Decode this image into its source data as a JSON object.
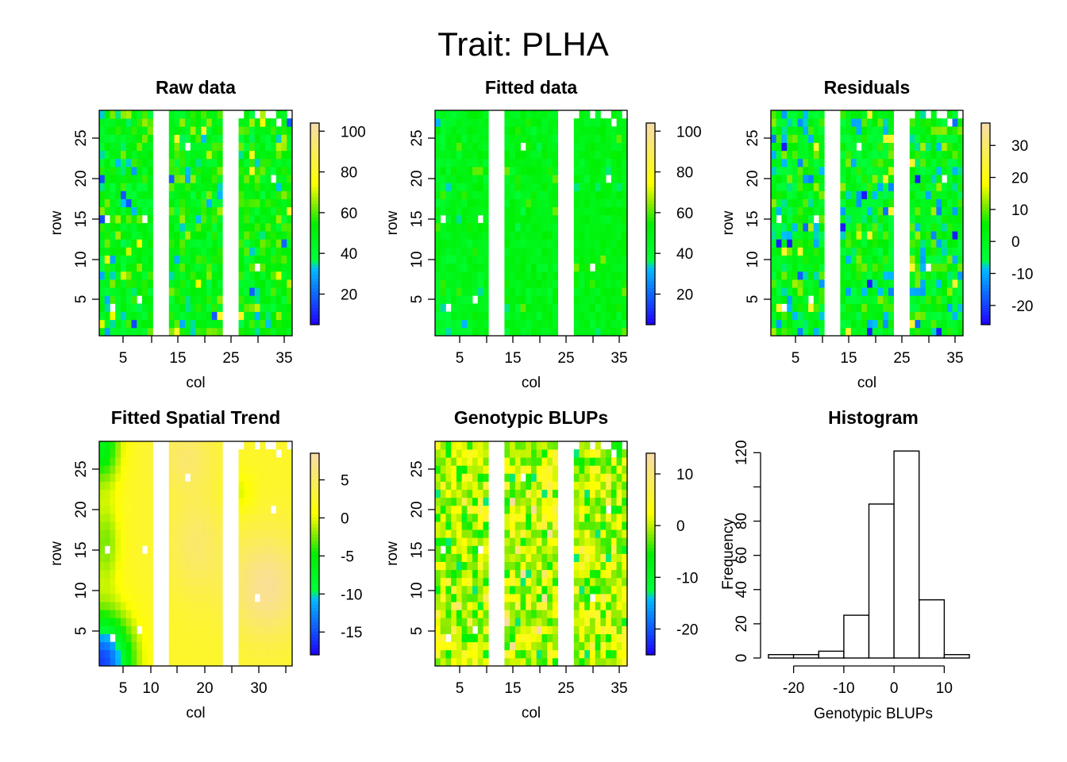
{
  "figure": {
    "title": "Trait: PLHA"
  },
  "chart_data": [
    {
      "id": "raw",
      "type": "heatmap",
      "title": "Raw data",
      "xlabel": "col",
      "ylabel": "row",
      "xlim": [
        0.5,
        36.5
      ],
      "ylim": [
        0.5,
        28.5
      ],
      "xticks": [
        "5",
        "15",
        "25",
        "35"
      ],
      "yticks": [
        "5",
        "10",
        "15",
        "20",
        "25"
      ],
      "colorbar": {
        "min": 5,
        "max": 104,
        "ticks": [
          "20",
          "40",
          "60",
          "80",
          "100"
        ]
      },
      "missing_columns": [
        11,
        12,
        13,
        24,
        25,
        26
      ],
      "value_mean": 48,
      "value_spread": 12
    },
    {
      "id": "fitted",
      "type": "heatmap",
      "title": "Fitted data",
      "xlabel": "col",
      "ylabel": "row",
      "xlim": [
        0.5,
        36.5
      ],
      "ylim": [
        0.5,
        28.5
      ],
      "xticks": [
        "5",
        "15",
        "25",
        "35"
      ],
      "yticks": [
        "5",
        "10",
        "15",
        "20",
        "25"
      ],
      "colorbar": {
        "min": 5,
        "max": 104,
        "ticks": [
          "20",
          "40",
          "60",
          "80",
          "100"
        ]
      },
      "missing_columns": [
        11,
        12,
        13,
        24,
        25,
        26
      ],
      "value_mean": 47,
      "value_spread": 5
    },
    {
      "id": "residuals",
      "type": "heatmap",
      "title": "Residuals",
      "xlabel": "col",
      "ylabel": "row",
      "xlim": [
        0.5,
        36.5
      ],
      "ylim": [
        0.5,
        28.5
      ],
      "xticks": [
        "5",
        "15",
        "25",
        "35"
      ],
      "yticks": [
        "5",
        "10",
        "15",
        "20",
        "25"
      ],
      "colorbar": {
        "min": -26,
        "max": 37,
        "ticks": [
          "-20",
          "-10",
          "0",
          "10",
          "20",
          "30"
        ]
      },
      "missing_columns": [
        11,
        12,
        13,
        24,
        25,
        26
      ],
      "value_mean": 0,
      "value_spread": 9
    },
    {
      "id": "trend",
      "type": "heatmap",
      "title": "Fitted Spatial Trend",
      "xlabel": "col",
      "ylabel": "row",
      "xlim": [
        0.5,
        36.5
      ],
      "ylim": [
        0.5,
        28.5
      ],
      "xticks": [
        "5",
        "10",
        "20",
        "30"
      ],
      "yticks": [
        "5",
        "10",
        "15",
        "20",
        "25"
      ],
      "colorbar": {
        "min": -18,
        "max": 8.5,
        "ticks": [
          "-15",
          "-10",
          "-5",
          "0",
          "5"
        ]
      },
      "missing_columns": [
        11,
        12,
        13,
        24,
        25,
        26
      ],
      "smooth": true
    },
    {
      "id": "blups",
      "type": "heatmap",
      "title": "Genotypic BLUPs",
      "xlabel": "col",
      "ylabel": "row",
      "xlim": [
        0.5,
        36.5
      ],
      "ylim": [
        0.5,
        28.5
      ],
      "xticks": [
        "5",
        "15",
        "25",
        "35"
      ],
      "yticks": [
        "5",
        "10",
        "15",
        "20",
        "25"
      ],
      "colorbar": {
        "min": -25,
        "max": 14,
        "ticks": [
          "-20",
          "-10",
          "0",
          "10"
        ]
      },
      "missing_columns": [
        11,
        12,
        13,
        24,
        25,
        26
      ],
      "value_mean": 0,
      "value_spread": 5
    },
    {
      "id": "hist",
      "type": "bar",
      "title": "Histogram",
      "xlabel": "Genotypic BLUPs",
      "ylabel": "Frequency",
      "bins": [
        {
          "from": -25,
          "to": -20,
          "count": 2
        },
        {
          "from": -20,
          "to": -15,
          "count": 2
        },
        {
          "from": -15,
          "to": -10,
          "count": 4
        },
        {
          "from": -10,
          "to": -5,
          "count": 25
        },
        {
          "from": -5,
          "to": 0,
          "count": 90
        },
        {
          "from": 0,
          "to": 5,
          "count": 121
        },
        {
          "from": 5,
          "to": 10,
          "count": 34
        },
        {
          "from": 10,
          "to": 15,
          "count": 2
        }
      ],
      "xlim": [
        -25,
        15
      ],
      "ylim": [
        0,
        122
      ],
      "xticks": [
        "-20",
        "-10",
        "0",
        "10"
      ],
      "yticks": [
        "0",
        "20",
        "40",
        "60",
        "80",
        "120"
      ]
    }
  ]
}
